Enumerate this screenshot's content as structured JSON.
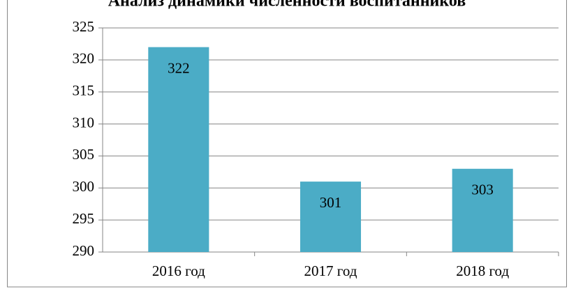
{
  "chart_data": {
    "type": "bar",
    "title": "Анализ динамики  численности воспитанников",
    "categories": [
      "2016 год",
      "2017 год",
      "2018 год"
    ],
    "values": [
      322,
      301,
      303
    ],
    "color": "#4bacc6",
    "ylim": [
      290,
      325
    ],
    "yticks": [
      290,
      295,
      300,
      305,
      310,
      315,
      320,
      325
    ],
    "grid": true,
    "data_labels": true
  }
}
